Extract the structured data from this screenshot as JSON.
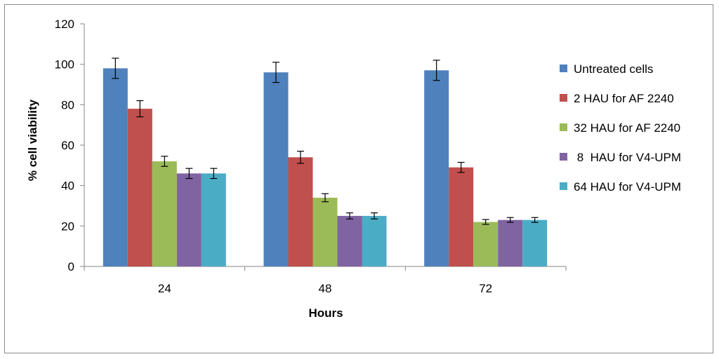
{
  "chart_data": {
    "type": "bar",
    "categories": [
      "24",
      "48",
      "72"
    ],
    "series": [
      {
        "name": "Untreated cells",
        "values": [
          98,
          96,
          97
        ],
        "errors": [
          5,
          5,
          5
        ],
        "color": "#4f81bd"
      },
      {
        "name": "2 HAU for AF 2240",
        "values": [
          78,
          54,
          49
        ],
        "errors": [
          4,
          3,
          2.5
        ],
        "color": "#c0504d"
      },
      {
        "name": "32 HAU for AF 2240",
        "values": [
          52,
          34,
          22
        ],
        "errors": [
          2.5,
          2,
          1.2
        ],
        "color": "#9bbb59"
      },
      {
        "name": " 8  HAU for V4-UPM",
        "values": [
          46,
          25,
          23
        ],
        "errors": [
          2.5,
          1.5,
          1.2
        ],
        "color": "#8064a2"
      },
      {
        "name": "64 HAU for V4-UPM",
        "values": [
          46,
          25,
          23
        ],
        "errors": [
          2.5,
          1.5,
          1.2
        ],
        "color": "#4bacc6"
      }
    ],
    "xlabel": "Hours",
    "ylabel": "% cell viability",
    "ylim": [
      0,
      120
    ],
    "yticks": [
      0,
      20,
      40,
      60,
      80,
      100,
      120
    ],
    "grid": false,
    "legend_position": "right"
  }
}
